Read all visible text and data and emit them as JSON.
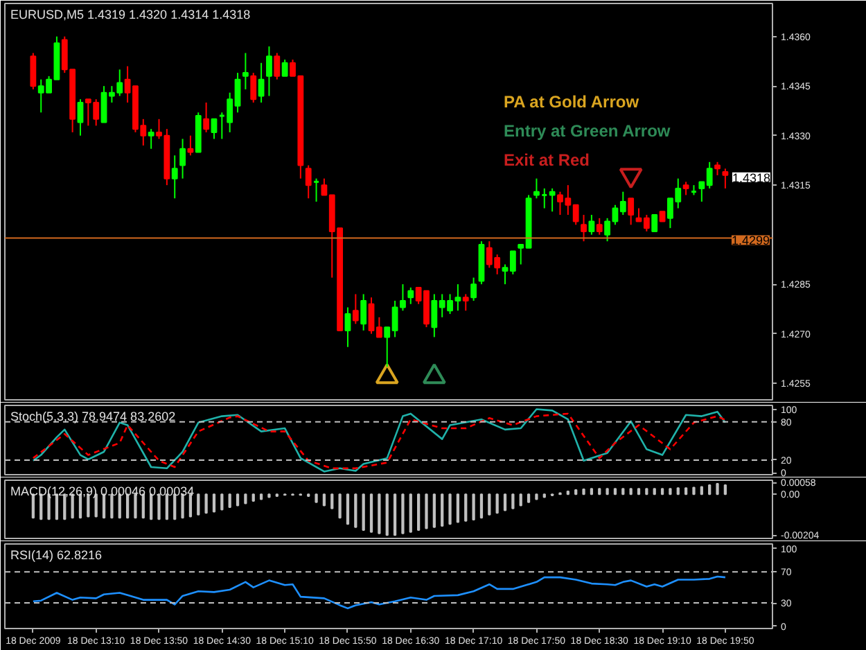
{
  "chart_data": [
    {
      "type": "candlestick",
      "title": "EURUSD,M5 1.4319 1.4320 1.4314 1.4318",
      "tick_labels": "y",
      "x": [
        "2009-12-18T12:30",
        "2009-12-18T12:35",
        "2009-12-18T12:40",
        "2009-12-18T12:45",
        "2009-12-18T12:50",
        "2009-12-18T12:55",
        "2009-12-18T13:00",
        "2009-12-18T13:05",
        "2009-12-18T13:10",
        "2009-12-18T13:15",
        "2009-12-18T13:20",
        "2009-12-18T13:25",
        "2009-12-18T13:30",
        "2009-12-18T13:35",
        "2009-12-18T13:40",
        "2009-12-18T13:45",
        "2009-12-18T13:50",
        "2009-12-18T13:55",
        "2009-12-18T14:00",
        "2009-12-18T14:05",
        "2009-12-18T14:10",
        "2009-12-18T14:15",
        "2009-12-18T14:20",
        "2009-12-18T14:25",
        "2009-12-18T14:30",
        "2009-12-18T14:35",
        "2009-12-18T14:40",
        "2009-12-18T14:45",
        "2009-12-18T14:50",
        "2009-12-18T14:55",
        "2009-12-18T15:00",
        "2009-12-18T15:05",
        "2009-12-18T15:10",
        "2009-12-18T15:15",
        "2009-12-18T15:20",
        "2009-12-18T15:25",
        "2009-12-18T15:30",
        "2009-12-18T15:35",
        "2009-12-18T15:40",
        "2009-12-18T15:45",
        "2009-12-18T15:50",
        "2009-12-18T15:55",
        "2009-12-18T16:00",
        "2009-12-18T16:05",
        "2009-12-18T16:10",
        "2009-12-18T16:15",
        "2009-12-18T16:20",
        "2009-12-18T16:25",
        "2009-12-18T16:30",
        "2009-12-18T16:35",
        "2009-12-18T16:40",
        "2009-12-18T16:45",
        "2009-12-18T16:50",
        "2009-12-18T16:55",
        "2009-12-18T17:00",
        "2009-12-18T17:05",
        "2009-12-18T17:10",
        "2009-12-18T17:15",
        "2009-12-18T17:20",
        "2009-12-18T17:25",
        "2009-12-18T17:30",
        "2009-12-18T17:35",
        "2009-12-18T17:40",
        "2009-12-18T17:45",
        "2009-12-18T17:50",
        "2009-12-18T17:55",
        "2009-12-18T18:00",
        "2009-12-18T18:05",
        "2009-12-18T18:10",
        "2009-12-18T18:15",
        "2009-12-18T18:20",
        "2009-12-18T18:25",
        "2009-12-18T18:30",
        "2009-12-18T18:35",
        "2009-12-18T18:40",
        "2009-12-18T18:45",
        "2009-12-18T18:50",
        "2009-12-18T18:55",
        "2009-12-18T19:00",
        "2009-12-18T19:05",
        "2009-12-18T19:10",
        "2009-12-18T19:15",
        "2009-12-18T19:20",
        "2009-12-18T19:25",
        "2009-12-18T19:30",
        "2009-12-18T19:35",
        "2009-12-18T19:40",
        "2009-12-18T19:45",
        "2009-12-18T19:50"
      ],
      "ohlc": [
        [
          1.4354,
          1.4355,
          1.4344,
          1.4345
        ],
        [
          1.4343,
          1.4347,
          1.4337,
          1.4345
        ],
        [
          1.4343,
          1.4348,
          1.4343,
          1.4347
        ],
        [
          1.4347,
          1.436,
          1.4347,
          1.4358
        ],
        [
          1.4359,
          1.436,
          1.4349,
          1.435
        ],
        [
          1.435,
          1.435,
          1.4331,
          1.4335
        ],
        [
          1.4334,
          1.4341,
          1.433,
          1.434
        ],
        [
          1.4341,
          1.4341,
          1.4333,
          1.434
        ],
        [
          1.434,
          1.4341,
          1.4333,
          1.4335
        ],
        [
          1.4334,
          1.4345,
          1.4334,
          1.4343
        ],
        [
          1.4342,
          1.4345,
          1.434,
          1.4343
        ],
        [
          1.4343,
          1.435,
          1.4342,
          1.4346
        ],
        [
          1.4347,
          1.4351,
          1.434,
          1.4343
        ],
        [
          1.4345,
          1.4345,
          1.4331,
          1.4332
        ],
        [
          1.4333,
          1.4335,
          1.4327,
          1.433
        ],
        [
          1.433,
          1.4332,
          1.4326,
          1.4331
        ],
        [
          1.4331,
          1.4335,
          1.4329,
          1.433
        ],
        [
          1.433,
          1.4332,
          1.4315,
          1.4317
        ],
        [
          1.4317,
          1.4324,
          1.4311,
          1.432
        ],
        [
          1.4321,
          1.4329,
          1.4317,
          1.4326
        ],
        [
          1.4326,
          1.433,
          1.4324,
          1.4325
        ],
        [
          1.4325,
          1.4337,
          1.4325,
          1.4336
        ],
        [
          1.4335,
          1.434,
          1.4331,
          1.4332
        ],
        [
          1.4331,
          1.4335,
          1.4329,
          1.4335
        ],
        [
          1.4336,
          1.4337,
          1.4329,
          1.4336
        ],
        [
          1.4334,
          1.4343,
          1.4331,
          1.4341
        ],
        [
          1.4339,
          1.4349,
          1.4337,
          1.4347
        ],
        [
          1.4348,
          1.4355,
          1.4344,
          1.4349
        ],
        [
          1.4348,
          1.4349,
          1.434,
          1.4341
        ],
        [
          1.4342,
          1.4352,
          1.434,
          1.4347
        ],
        [
          1.4348,
          1.4357,
          1.4342,
          1.4354
        ],
        [
          1.4354,
          1.4355,
          1.4347,
          1.4348
        ],
        [
          1.4348,
          1.4353,
          1.4348,
          1.4352
        ],
        [
          1.4352,
          1.4353,
          1.4348,
          1.4348
        ],
        [
          1.4348,
          1.4348,
          1.4317,
          1.4321
        ],
        [
          1.432,
          1.4321,
          1.4311,
          1.4315
        ],
        [
          1.4316,
          1.4317,
          1.431,
          1.4316
        ],
        [
          1.4315,
          1.4317,
          1.4312,
          1.4312
        ],
        [
          1.4312,
          1.4312,
          1.4287,
          1.4301
        ],
        [
          1.4302,
          1.4302,
          1.4271,
          1.4271
        ],
        [
          1.4271,
          1.4278,
          1.4266,
          1.4276
        ],
        [
          1.4277,
          1.4282,
          1.4273,
          1.4274
        ],
        [
          1.4273,
          1.4282,
          1.4271,
          1.428
        ],
        [
          1.4279,
          1.4281,
          1.427,
          1.4271
        ],
        [
          1.4272,
          1.4275,
          1.4269,
          1.4269
        ],
        [
          1.4269,
          1.4272,
          1.426,
          1.4272
        ],
        [
          1.4271,
          1.428,
          1.4269,
          1.4278
        ],
        [
          1.4278,
          1.4285,
          1.4277,
          1.428
        ],
        [
          1.4281,
          1.4284,
          1.4279,
          1.4283
        ],
        [
          1.4284,
          1.4284,
          1.4279,
          1.428
        ],
        [
          1.4283,
          1.4283,
          1.4272,
          1.4273
        ],
        [
          1.4272,
          1.4282,
          1.4269,
          1.428
        ],
        [
          1.4278,
          1.4282,
          1.4275,
          1.428
        ],
        [
          1.4277,
          1.4282,
          1.4276,
          1.428
        ],
        [
          1.428,
          1.4285,
          1.4277,
          1.4281
        ],
        [
          1.4281,
          1.4282,
          1.4277,
          1.428
        ],
        [
          1.4281,
          1.4287,
          1.428,
          1.4285
        ],
        [
          1.4286,
          1.4298,
          1.4285,
          1.4297
        ],
        [
          1.4296,
          1.4298,
          1.429,
          1.4291
        ],
        [
          1.4293,
          1.4294,
          1.4288,
          1.429
        ],
        [
          1.4289,
          1.4291,
          1.4285,
          1.429
        ],
        [
          1.4289,
          1.4295,
          1.4288,
          1.4295
        ],
        [
          1.4296,
          1.4297,
          1.4291,
          1.4297
        ],
        [
          1.4296,
          1.4312,
          1.4296,
          1.4311
        ],
        [
          1.4312,
          1.4317,
          1.4311,
          1.4313
        ],
        [
          1.4312,
          1.4314,
          1.4308,
          1.4312
        ],
        [
          1.4312,
          1.4314,
          1.4307,
          1.4313
        ],
        [
          1.4312,
          1.4313,
          1.4306,
          1.431
        ],
        [
          1.4311,
          1.4315,
          1.4306,
          1.4309
        ],
        [
          1.4309,
          1.4309,
          1.4303,
          1.4304
        ],
        [
          1.4303,
          1.4306,
          1.4298,
          1.4301
        ],
        [
          1.4301,
          1.4306,
          1.43,
          1.4304
        ],
        [
          1.4303,
          1.4305,
          1.43,
          1.4301
        ],
        [
          1.43,
          1.4305,
          1.4298,
          1.4304
        ],
        [
          1.4304,
          1.4309,
          1.4303,
          1.4308
        ],
        [
          1.4307,
          1.4313,
          1.4306,
          1.431
        ],
        [
          1.4311,
          1.4311,
          1.4303,
          1.4306
        ],
        [
          1.4305,
          1.4308,
          1.4304,
          1.4304
        ],
        [
          1.4305,
          1.4306,
          1.4301,
          1.4302
        ],
        [
          1.4301,
          1.4306,
          1.4301,
          1.4306
        ],
        [
          1.4307,
          1.4307,
          1.4304,
          1.4304
        ],
        [
          1.4305,
          1.4311,
          1.4302,
          1.4311
        ],
        [
          1.431,
          1.4317,
          1.4308,
          1.4314
        ],
        [
          1.4315,
          1.4316,
          1.4312,
          1.4314
        ],
        [
          1.4313,
          1.4315,
          1.4312,
          1.4313
        ],
        [
          1.4314,
          1.4316,
          1.431,
          1.4316
        ],
        [
          1.4315,
          1.4322,
          1.4314,
          1.432
        ],
        [
          1.4321,
          1.4322,
          1.4318,
          1.432
        ],
        [
          1.4319,
          1.432,
          1.4314,
          1.4318
        ]
      ],
      "colors": [
        "#ff0000",
        "#00ff00",
        "#00ff00",
        "#00ff00",
        "#ff0000",
        "#ff0000",
        "#00ff00",
        "#ff0000",
        "#ff0000",
        "#00ff00",
        "#00ff00",
        "#00ff00",
        "#ff0000",
        "#ff0000",
        "#ff0000",
        "#00ff00",
        "#ff0000",
        "#ff0000",
        "#00ff00",
        "#00ff00",
        "#ff0000",
        "#00ff00",
        "#ff0000",
        "#00ff00",
        "#00ff00",
        "#00ff00",
        "#00ff00",
        "#00ff00",
        "#ff0000",
        "#00ff00",
        "#00ff00",
        "#ff0000",
        "#00ff00",
        "#ff0000",
        "#ff0000",
        "#ff0000",
        "#00ff00",
        "#ff0000",
        "#ff0000",
        "#ff0000",
        "#00ff00",
        "#ff0000",
        "#00ff00",
        "#ff0000",
        "#ff0000",
        "#00ff00",
        "#00ff00",
        "#00ff00",
        "#00ff00",
        "#ff0000",
        "#ff0000",
        "#00ff00",
        "#00ff00",
        "#00ff00",
        "#00ff00",
        "#ff0000",
        "#00ff00",
        "#00ff00",
        "#ff0000",
        "#ff0000",
        "#00ff00",
        "#00ff00",
        "#00ff00",
        "#00ff00",
        "#00ff00",
        "#00ff00",
        "#00ff00",
        "#ff0000",
        "#ff0000",
        "#ff0000",
        "#ff0000",
        "#00ff00",
        "#ff0000",
        "#00ff00",
        "#00ff00",
        "#00ff00",
        "#ff0000",
        "#ff0000",
        "#ff0000",
        "#00ff00",
        "#ff0000",
        "#00ff00",
        "#00ff00",
        "#ff0000",
        "#00ff00",
        "#00ff00",
        "#00ff00",
        "#ff0000",
        "#ff0000"
      ],
      "series": [
        {
          "type": "scatter",
          "marker": "triangle",
          "color": "#daa520",
          "x": [
            "2009-12-18T16:15"
          ],
          "values": [
            1.4257
          ]
        },
        {
          "type": "scatter",
          "marker": "triangle",
          "color": "#2e8b57",
          "x": [
            "2009-12-18T16:45"
          ],
          "values": [
            1.4257
          ]
        },
        {
          "type": "scatter",
          "marker": "triangle",
          "color": "#c81e1e",
          "x": [
            "2009-12-18T18:50"
          ],
          "values": [
            1.4318
          ]
        }
      ],
      "annotations": [
        "PA at Gold Arrow",
        "Entry at Green Arrow",
        "Exit at Red",
        {
          "text": "1.4318",
          "x": "2009-12-18T19:50",
          "y": 1.4318
        }
      ],
      "ref_lines": [
        {
          "axis": "y",
          "value": 1.4299,
          "label": "1.4299",
          "color": "#d2691e"
        }
      ],
      "xlim": [
        "2009-12-18T12:12",
        "2009-12-18T20:20"
      ],
      "ylim": [
        1.425,
        1.437
      ],
      "yticks": [
        {
          "value": 1.4255,
          "label": "1.4255"
        },
        {
          "value": 1.427,
          "label": "1.4270"
        },
        {
          "value": 1.4285,
          "label": "1.4285"
        },
        {
          "value": 1.4315,
          "label": "1.4315"
        },
        {
          "value": 1.433,
          "label": "1.4330"
        },
        {
          "value": 1.4345,
          "label": "1.4345"
        },
        {
          "value": 1.436,
          "label": "1.4360"
        }
      ]
    },
    {
      "type": "line",
      "title": "Stoch(5,3,3) 78.9474 83.2602",
      "tick_labels": "y",
      "series": [
        {
          "color": "#20b2aa",
          "x": [
            "2009-12-18T12:30",
            "2009-12-18T12:35",
            "2009-12-18T12:45",
            "2009-12-18T12:50",
            "2009-12-18T13:00",
            "2009-12-18T13:05",
            "2009-12-18T13:15",
            "2009-12-18T13:25",
            "2009-12-18T13:30",
            "2009-12-18T13:45",
            "2009-12-18T13:55",
            "2009-12-18T14:05",
            "2009-12-18T14:15",
            "2009-12-18T14:30",
            "2009-12-18T14:40",
            "2009-12-18T14:55",
            "2009-12-18T15:10",
            "2009-12-18T15:20",
            "2009-12-18T15:35",
            "2009-12-18T15:45",
            "2009-12-18T15:50",
            "2009-12-18T15:55",
            "2009-12-18T16:00",
            "2009-12-18T16:15",
            "2009-12-18T16:25",
            "2009-12-18T16:30",
            "2009-12-18T16:50",
            "2009-12-18T16:55",
            "2009-12-18T17:15",
            "2009-12-18T17:30",
            "2009-12-18T17:40",
            "2009-12-18T17:50",
            "2009-12-18T18:00",
            "2009-12-18T18:10",
            "2009-12-18T18:20",
            "2009-12-18T18:35",
            "2009-12-18T18:50",
            "2009-12-18T19:00",
            "2009-12-18T19:10",
            "2009-12-18T19:25",
            "2009-12-18T19:35",
            "2009-12-18T19:45",
            "2009-12-18T19:50"
          ],
          "values": [
            19,
            28,
            56,
            68,
            28,
            21,
            33,
            79,
            75,
            9,
            7,
            33,
            79,
            89,
            91,
            65,
            70,
            23,
            2,
            7,
            5,
            3,
            14,
            23,
            89,
            93,
            53,
            75,
            84,
            68,
            70,
            100,
            98,
            84,
            19,
            31,
            81,
            37,
            28,
            91,
            89,
            96,
            79
          ]
        },
        {
          "color": "#ff0000",
          "line_style": "dashed",
          "x": [
            "2009-12-18T12:30",
            "2009-12-18T12:50",
            "2009-12-18T13:05",
            "2009-12-18T13:25",
            "2009-12-18T13:30",
            "2009-12-18T13:50",
            "2009-12-18T14:00",
            "2009-12-18T14:15",
            "2009-12-18T14:35",
            "2009-12-18T14:40",
            "2009-12-18T15:00",
            "2009-12-18T15:10",
            "2009-12-18T15:25",
            "2009-12-18T15:40",
            "2009-12-18T15:55",
            "2009-12-18T16:15",
            "2009-12-18T16:30",
            "2009-12-18T16:50",
            "2009-12-18T17:05",
            "2009-12-18T17:20",
            "2009-12-18T17:35",
            "2009-12-18T17:50",
            "2009-12-18T18:10",
            "2009-12-18T18:30",
            "2009-12-18T18:40",
            "2009-12-18T18:55",
            "2009-12-18T19:15",
            "2009-12-18T19:30",
            "2009-12-18T19:45",
            "2009-12-18T19:50"
          ],
          "values": [
            23,
            61,
            28,
            47,
            75,
            19,
            9,
            65,
            87,
            89,
            65,
            65,
            19,
            7,
            7,
            16,
            84,
            70,
            70,
            86,
            75,
            89,
            93,
            23,
            47,
            75,
            37,
            79,
            89,
            83
          ]
        }
      ],
      "ref_lines": [
        {
          "axis": "y",
          "value": 80,
          "line_style": "dashed",
          "color": "#c0c0c0"
        },
        {
          "axis": "y",
          "value": 20,
          "line_style": "dashed",
          "color": "#c0c0c0"
        }
      ],
      "xlim": [
        "2009-12-18T12:12",
        "2009-12-18T20:20"
      ],
      "ylim": [
        -3,
        106
      ],
      "yticks": [
        0,
        20,
        80,
        100
      ]
    },
    {
      "type": "bar",
      "title": "MACD(12,26,9) 0.00046 0.00034",
      "tick_labels": "y",
      "series": [
        {
          "color": "#c0c0c0",
          "x": [
            "2009-12-18T12:30",
            "2009-12-18T12:35",
            "2009-12-18T12:40",
            "2009-12-18T12:45",
            "2009-12-18T12:50",
            "2009-12-18T12:55",
            "2009-12-18T13:00",
            "2009-12-18T13:05",
            "2009-12-18T13:10",
            "2009-12-18T13:15",
            "2009-12-18T13:20",
            "2009-12-18T13:25",
            "2009-12-18T13:30",
            "2009-12-18T13:35",
            "2009-12-18T13:40",
            "2009-12-18T13:45",
            "2009-12-18T13:50",
            "2009-12-18T13:55",
            "2009-12-18T14:00",
            "2009-12-18T14:05",
            "2009-12-18T14:10",
            "2009-12-18T14:15",
            "2009-12-18T14:20",
            "2009-12-18T14:25",
            "2009-12-18T14:30",
            "2009-12-18T14:35",
            "2009-12-18T14:40",
            "2009-12-18T14:45",
            "2009-12-18T14:50",
            "2009-12-18T14:55",
            "2009-12-18T15:00",
            "2009-12-18T15:05",
            "2009-12-18T15:10",
            "2009-12-18T15:15",
            "2009-12-18T15:20",
            "2009-12-18T15:25",
            "2009-12-18T15:30",
            "2009-12-18T15:35",
            "2009-12-18T15:40",
            "2009-12-18T15:45",
            "2009-12-18T15:50",
            "2009-12-18T15:55",
            "2009-12-18T16:00",
            "2009-12-18T16:05",
            "2009-12-18T16:10",
            "2009-12-18T16:15",
            "2009-12-18T16:20",
            "2009-12-18T16:25",
            "2009-12-18T16:30",
            "2009-12-18T16:35",
            "2009-12-18T16:40",
            "2009-12-18T16:45",
            "2009-12-18T16:50",
            "2009-12-18T16:55",
            "2009-12-18T17:00",
            "2009-12-18T17:05",
            "2009-12-18T17:10",
            "2009-12-18T17:15",
            "2009-12-18T17:20",
            "2009-12-18T17:25",
            "2009-12-18T17:30",
            "2009-12-18T17:35",
            "2009-12-18T17:40",
            "2009-12-18T17:45",
            "2009-12-18T17:50",
            "2009-12-18T17:55",
            "2009-12-18T18:00",
            "2009-12-18T18:05",
            "2009-12-18T18:10",
            "2009-12-18T18:15",
            "2009-12-18T18:20",
            "2009-12-18T18:25",
            "2009-12-18T18:30",
            "2009-12-18T18:35",
            "2009-12-18T18:40",
            "2009-12-18T18:45",
            "2009-12-18T18:50",
            "2009-12-18T18:55",
            "2009-12-18T19:00",
            "2009-12-18T19:05",
            "2009-12-18T19:10",
            "2009-12-18T19:15",
            "2009-12-18T19:20",
            "2009-12-18T19:25",
            "2009-12-18T19:30",
            "2009-12-18T19:35",
            "2009-12-18T19:40",
            "2009-12-18T19:45",
            "2009-12-18T19:50"
          ],
          "values": [
            -0.00117,
            -0.00124,
            -0.00124,
            -0.00124,
            -0.00124,
            -0.00117,
            -0.00117,
            -0.00111,
            -0.00111,
            -0.00117,
            -0.00117,
            -0.00117,
            -0.00117,
            -0.00117,
            -0.00117,
            -0.00124,
            -0.00124,
            -0.00124,
            -0.00124,
            -0.00117,
            -0.00111,
            -0.00102,
            -0.00093,
            -0.00087,
            -0.00077,
            -0.00065,
            -0.00056,
            -0.00046,
            -0.00034,
            -0.00025,
            -0.00015,
            -9e-05,
            -3e-05,
            -3e-05,
            -3e-05,
            -9e-05,
            -0.0004,
            -0.00056,
            -0.00071,
            -0.00117,
            -0.00148,
            -0.00164,
            -0.00179,
            -0.00188,
            -0.00195,
            -0.00204,
            -0.00204,
            -0.00195,
            -0.00188,
            -0.00179,
            -0.0017,
            -0.00164,
            -0.00158,
            -0.00148,
            -0.00139,
            -0.00133,
            -0.00127,
            -0.00117,
            -0.00102,
            -0.00093,
            -0.0008,
            -0.00071,
            -0.00056,
            -0.0004,
            -0.00025,
            -0.00015,
            -6e-05,
            6e-05,
            0.00015,
            0.00022,
            0.00025,
            0.00028,
            0.00028,
            0.00028,
            0.00028,
            0.00028,
            0.00028,
            0.00028,
            0.00028,
            0.00028,
            0.00028,
            0.00028,
            0.00031,
            0.00031,
            0.00034,
            0.00037,
            0.00046,
            0.00053,
            0.00046
          ]
        }
      ],
      "xlim": [
        "2009-12-18T12:12",
        "2009-12-18T20:20"
      ],
      "ylim": [
        -0.0022,
        0.0007
      ],
      "yticks": [
        {
          "value": -0.00204,
          "label": "-0.00204"
        },
        {
          "value": 0,
          "label": "0.00"
        },
        {
          "value": 0.00058,
          "label": "0.00058"
        }
      ]
    },
    {
      "type": "line",
      "title": "RSI(14) 62.8216",
      "series": [
        {
          "color": "#1e90ff",
          "x": [
            "2009-12-18T12:30",
            "2009-12-18T12:35",
            "2009-12-18T12:45",
            "2009-12-18T12:55",
            "2009-12-18T13:00",
            "2009-12-18T13:10",
            "2009-12-18T13:15",
            "2009-12-18T13:25",
            "2009-12-18T13:30",
            "2009-12-18T13:40",
            "2009-12-18T13:55",
            "2009-12-18T14:00",
            "2009-12-18T14:05",
            "2009-12-18T14:15",
            "2009-12-18T14:25",
            "2009-12-18T14:35",
            "2009-12-18T14:45",
            "2009-12-18T14:50",
            "2009-12-18T15:00",
            "2009-12-18T15:10",
            "2009-12-18T15:15",
            "2009-12-18T15:20",
            "2009-12-18T15:35",
            "2009-12-18T15:45",
            "2009-12-18T15:50",
            "2009-12-18T15:55",
            "2009-12-18T16:05",
            "2009-12-18T16:10",
            "2009-12-18T16:20",
            "2009-12-18T16:30",
            "2009-12-18T16:40",
            "2009-12-18T16:45",
            "2009-12-18T17:00",
            "2009-12-18T17:10",
            "2009-12-18T17:20",
            "2009-12-18T17:25",
            "2009-12-18T17:35",
            "2009-12-18T17:50",
            "2009-12-18T17:55",
            "2009-12-18T18:05",
            "2009-12-18T18:15",
            "2009-12-18T18:25",
            "2009-12-18T18:35",
            "2009-12-18T18:40",
            "2009-12-18T18:45",
            "2009-12-18T18:50",
            "2009-12-18T19:00",
            "2009-12-18T19:05",
            "2009-12-18T19:10",
            "2009-12-18T19:20",
            "2009-12-18T19:30",
            "2009-12-18T19:40",
            "2009-12-18T19:45",
            "2009-12-18T19:50"
          ],
          "values": [
            32,
            33,
            43,
            34,
            37,
            36,
            41,
            43,
            40,
            34,
            34,
            28,
            39,
            45,
            44,
            47,
            57,
            50,
            59,
            53,
            54,
            38,
            36,
            27,
            23,
            27,
            31,
            28,
            32,
            37,
            34,
            39,
            40,
            45,
            54,
            48,
            48,
            57,
            63,
            63,
            60,
            55,
            54,
            53,
            57,
            59,
            51,
            54,
            51,
            60,
            60,
            61,
            64,
            63
          ]
        }
      ],
      "ref_lines": [
        {
          "axis": "y",
          "value": 70,
          "line_style": "dashed",
          "color": "#c0c0c0"
        },
        {
          "axis": "y",
          "value": 30,
          "line_style": "dashed",
          "color": "#c0c0c0"
        }
      ],
      "xlim": [
        "2009-12-18T12:12",
        "2009-12-18T20:20"
      ],
      "ylim": [
        -3,
        106
      ],
      "yticks": [
        0,
        30,
        70,
        100
      ],
      "xticks": [
        {
          "value": "2009-12-18T12:30",
          "label": "18 Dec 2009"
        },
        {
          "value": "2009-12-18T13:10",
          "label": "18 Dec 13:10"
        },
        {
          "value": "2009-12-18T13:50",
          "label": "18 Dec 13:50"
        },
        {
          "value": "2009-12-18T14:30",
          "label": "18 Dec 14:30"
        },
        {
          "value": "2009-12-18T15:10",
          "label": "18 Dec 15:10"
        },
        {
          "value": "2009-12-18T15:50",
          "label": "18 Dec 15:50"
        },
        {
          "value": "2009-12-18T16:30",
          "label": "18 Dec 16:30"
        },
        {
          "value": "2009-12-18T17:10",
          "label": "18 Dec 17:10"
        },
        {
          "value": "2009-12-18T17:50",
          "label": "18 Dec 17:50"
        },
        {
          "value": "2009-12-18T18:30",
          "label": "18 Dec 18:30"
        },
        {
          "value": "2009-12-18T19:10",
          "label": "18 Dec 19:10"
        },
        {
          "value": "2009-12-18T19:50",
          "label": "18 Dec 19:50"
        }
      ]
    }
  ]
}
